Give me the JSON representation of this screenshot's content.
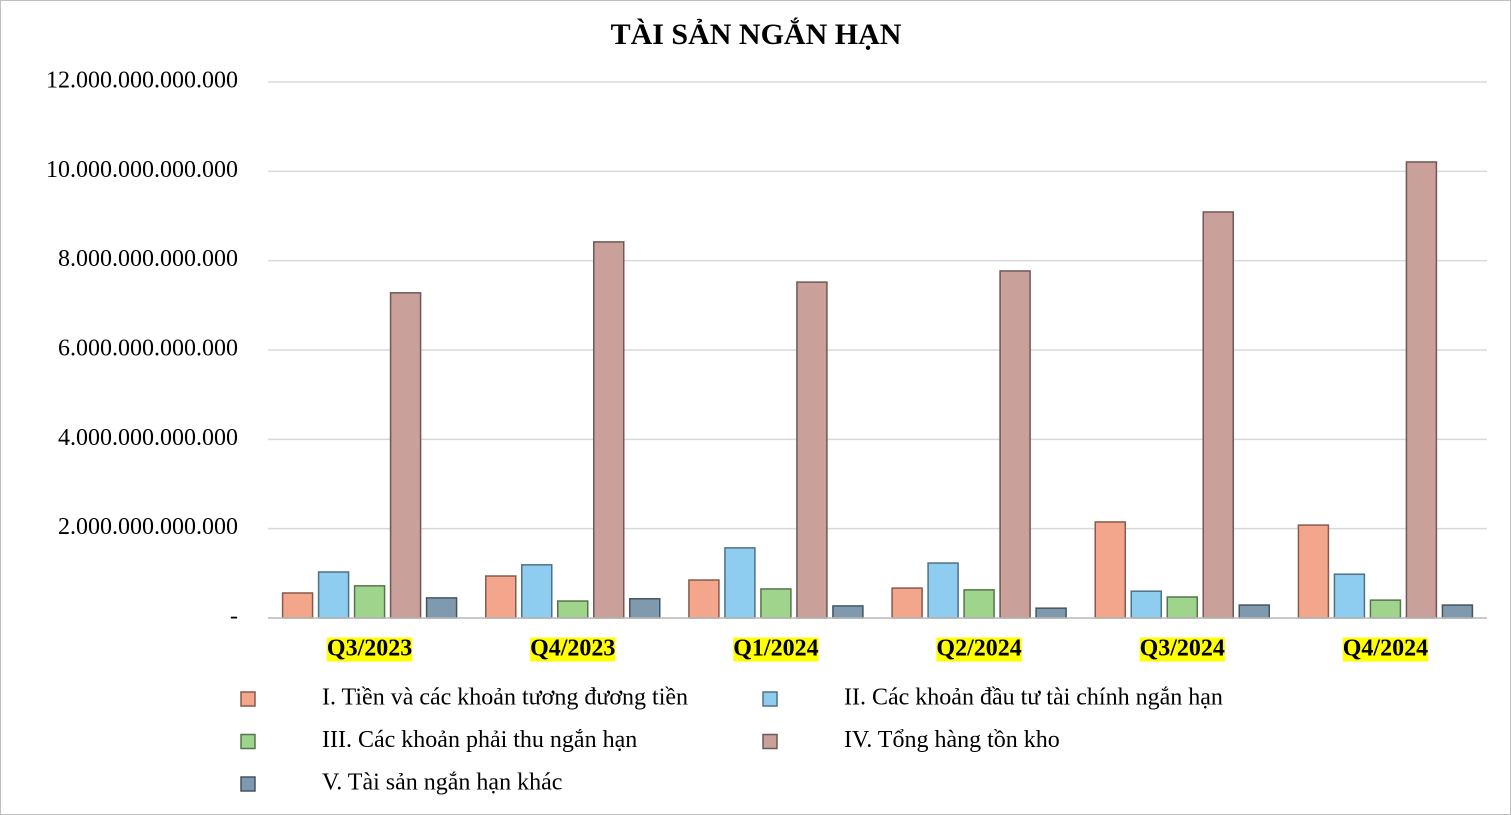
{
  "chart_data": {
    "type": "bar",
    "title": "TÀI SẢN NGẮN HẠN",
    "categories": [
      "Q3/2023",
      "Q4/2023",
      "Q1/2024",
      "Q2/2024",
      "Q3/2024",
      "Q4/2024"
    ],
    "series": [
      {
        "name": "I. Tiền và các khoản tương đương tiền",
        "color": "#f4a68c",
        "values": [
          560000000000,
          940000000000,
          850000000000,
          670000000000,
          2150000000000,
          2080000000000
        ]
      },
      {
        "name": "II. Các khoản đầu tư tài chính ngắn hạn",
        "color": "#8ecdf0",
        "values": [
          1030000000000,
          1190000000000,
          1570000000000,
          1230000000000,
          600000000000,
          980000000000
        ]
      },
      {
        "name": "III.  Các khoản phải thu ngắn hạn",
        "color": "#9fd48c",
        "values": [
          720000000000,
          380000000000,
          650000000000,
          630000000000,
          470000000000,
          400000000000
        ]
      },
      {
        "name": "IV. Tổng hàng tồn kho",
        "color": "#c9a09a",
        "values": [
          7280000000000,
          8420000000000,
          7520000000000,
          7770000000000,
          9090000000000,
          10210000000000
        ]
      },
      {
        "name": "V. Tài sản ngắn hạn khác",
        "color": "#7f9aae",
        "values": [
          450000000000,
          430000000000,
          270000000000,
          220000000000,
          290000000000,
          290000000000
        ]
      }
    ],
    "ylim": [
      0,
      12000000000000
    ],
    "yticks": [
      {
        "value": 0,
        "label": "-"
      },
      {
        "value": 2000000000000,
        "label": "2.000.000.000.000"
      },
      {
        "value": 4000000000000,
        "label": "4.000.000.000.000"
      },
      {
        "value": 6000000000000,
        "label": "6.000.000.000.000"
      },
      {
        "value": 8000000000000,
        "label": "8.000.000.000.000"
      },
      {
        "value": 10000000000000,
        "label": "10.000.000.000.000"
      },
      {
        "value": 12000000000000,
        "label": "12.000.000.000.000"
      }
    ],
    "grid": true
  }
}
